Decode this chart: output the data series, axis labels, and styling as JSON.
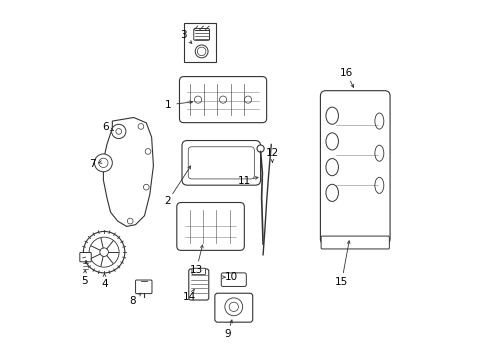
{
  "background_color": "#ffffff",
  "line_color": "#333333",
  "label_color": "#000000",
  "fig_width": 4.89,
  "fig_height": 3.6,
  "dpi": 100,
  "label_positions": {
    "1": [
      0.285,
      0.71,
      0.365,
      0.72
    ],
    "2": [
      0.285,
      0.44,
      0.355,
      0.548
    ],
    "3": [
      0.33,
      0.905,
      0.36,
      0.875
    ],
    "4": [
      0.108,
      0.21,
      0.108,
      0.248
    ],
    "5": [
      0.052,
      0.218,
      0.055,
      0.258
    ],
    "6": [
      0.11,
      0.648,
      0.135,
      0.638
    ],
    "7": [
      0.075,
      0.545,
      0.09,
      0.548
    ],
    "8": [
      0.188,
      0.162,
      0.212,
      0.185
    ],
    "9": [
      0.452,
      0.068,
      0.468,
      0.118
    ],
    "10": [
      0.462,
      0.228,
      0.448,
      0.228
    ],
    "11": [
      0.5,
      0.498,
      0.548,
      0.51
    ],
    "12": [
      0.578,
      0.575,
      0.578,
      0.54
    ],
    "13": [
      0.365,
      0.248,
      0.385,
      0.328
    ],
    "14": [
      0.345,
      0.172,
      0.36,
      0.195
    ],
    "15": [
      0.772,
      0.215,
      0.795,
      0.34
    ],
    "16": [
      0.785,
      0.8,
      0.81,
      0.75
    ]
  }
}
